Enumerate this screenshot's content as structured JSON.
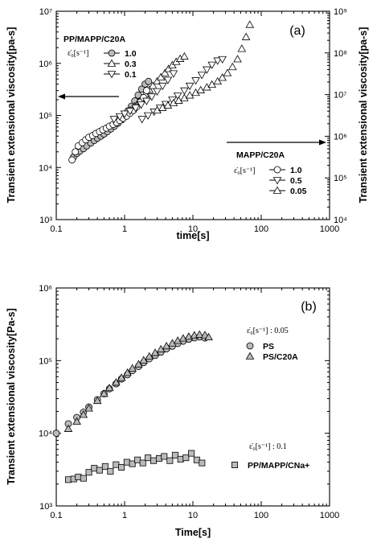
{
  "chart_data": [
    {
      "type": "scatter",
      "panel_label": "(a)",
      "xlabel": "time[s]",
      "ylabel": "Transient extensional viscosity[pa-s]",
      "x_scale": "log",
      "y_scale": "log",
      "xlim": [
        0.1,
        1000
      ],
      "ylim": [
        1000,
        10000000
      ],
      "y2lim": [
        10000,
        1000000000
      ],
      "x_ticks": [
        "0.1",
        "1",
        "10",
        "100",
        "1000"
      ],
      "y_ticks": [
        "10³",
        "10⁴",
        "10⁵",
        "10⁶",
        "10⁷"
      ],
      "y2_ticks": [
        "10⁴",
        "10⁵",
        "10⁶",
        "10⁷",
        "10⁸",
        "10⁹"
      ],
      "groups": [
        {
          "title": "PP/MAPP/C20A",
          "axis": "left",
          "arrow": "left",
          "rate_label": "ε̇₀[s⁻¹]",
          "series": [
            {
              "name": "1.0",
              "marker": "circle",
              "fill": "#bbbbbb",
              "x": [
                0.18,
                0.2,
                0.22,
                0.25,
                0.28,
                0.32,
                0.36,
                0.4,
                0.45,
                0.5,
                0.56,
                0.63,
                0.71,
                0.8,
                0.9,
                1.0,
                1.12,
                1.26,
                1.41,
                1.58,
                1.78,
                2.0,
                2.24
              ],
              "y": [
                16000,
                18500,
                20500,
                23000,
                26000,
                29500,
                33000,
                36500,
                40000,
                44000,
                49000,
                55000,
                62000,
                71000,
                83000,
                100000,
                122000,
                150000,
                190000,
                245000,
                320000,
                400000,
                450000
              ]
            },
            {
              "name": "0.3",
              "marker": "triangle-up",
              "fill": "#ffffff",
              "x": [
                0.85,
                1.0,
                1.2,
                1.4,
                1.6,
                1.8,
                2.0,
                2.3,
                2.6,
                3.0,
                3.4,
                3.9,
                4.4,
                5.0,
                5.7,
                6.5,
                7.5
              ],
              "y": [
                82000,
                100000,
                125000,
                150000,
                180000,
                215000,
                255000,
                310000,
                370000,
                450000,
                540000,
                650000,
                780000,
                920000,
                1070000,
                1220000,
                1350000
              ]
            },
            {
              "name": "0.1",
              "marker": "triangle-down",
              "fill": "#ffffff",
              "x": [
                1.8,
                2.2,
                2.7,
                3.3,
                4.0,
                5.0,
                6.0,
                7.5,
                9.0,
                11.0,
                13.5,
                16.0,
                19.0,
                23.0,
                27.0
              ],
              "y": [
                85000,
                100000,
                118000,
                140000,
                165000,
                200000,
                240000,
                300000,
                370000,
                470000,
                600000,
                760000,
                940000,
                1130000,
                1200000
              ]
            }
          ]
        },
        {
          "title": "MAPP/C20A",
          "axis": "right",
          "arrow": "right",
          "rate_label": "ε̇₀[s⁻¹]",
          "series": [
            {
              "name": "1.0",
              "marker": "circle",
              "fill": "#ffffff",
              "x": [
                0.17,
                0.19,
                0.21,
                0.24,
                0.27,
                0.3,
                0.34,
                0.38,
                0.43,
                0.48,
                0.54,
                0.6,
                0.68,
                0.76,
                0.85,
                0.95,
                1.07,
                1.2,
                1.35,
                1.5,
                1.7,
                1.9,
                2.1
              ],
              "y": [
                14000,
                20000,
                26000,
                30000,
                34000,
                38000,
                41000,
                45000,
                49000,
                53000,
                57000,
                62000,
                67000,
                73000,
                80000,
                88000,
                97000,
                110000,
                125000,
                145000,
                180000,
                220000,
                300000
              ]
            },
            {
              "name": "0.5",
              "marker": "triangle-down",
              "fill": "#ffffff",
              "x": [
                0.7,
                0.85,
                1.0,
                1.2,
                1.45,
                1.75,
                2.1,
                2.5,
                3.0,
                3.6,
                4.3,
                5.2
              ],
              "y": [
                85000,
                96000,
                108000,
                122000,
                140000,
                162000,
                190000,
                230000,
                290000,
                370000,
                480000,
                640000
              ]
            },
            {
              "name": "0.05",
              "marker": "triangle-up",
              "fill": "#ffffff",
              "x": [
                3.0,
                3.6,
                4.3,
                5.2,
                6.2,
                7.5,
                9.0,
                11.0,
                13.0,
                16.0,
                19.0,
                23.0,
                27.0,
                32.0,
                38.0,
                45.0,
                52.0,
                60.0,
                68.0
              ],
              "y": [
                125000,
                140000,
                155000,
                172000,
                192000,
                215000,
                242000,
                272000,
                305000,
                345000,
                390000,
                450000,
                530000,
                650000,
                850000,
                1200000,
                1900000,
                3200000,
                5500000
              ]
            }
          ]
        }
      ]
    },
    {
      "type": "scatter",
      "panel_label": "(b)",
      "xlabel": "Time[s]",
      "ylabel": "Transient extensional viscosity[Pa-s]",
      "x_scale": "log",
      "y_scale": "log",
      "xlim": [
        0.1,
        1000
      ],
      "ylim": [
        1000,
        1000000
      ],
      "x_ticks": [
        "0.1",
        "1",
        "10",
        "100",
        "1000"
      ],
      "y_ticks": [
        "10³",
        "10⁴",
        "10⁵",
        "10⁶"
      ],
      "groups": [
        {
          "rate_label": "ε̇₀[s⁻¹] : 0.05",
          "series": [
            {
              "name": "PS",
              "marker": "circle",
              "fill": "#bbbbbb",
              "x": [
                0.1,
                0.15,
                0.2,
                0.25,
                0.3,
                0.4,
                0.5,
                0.6,
                0.75,
                0.9,
                1.1,
                1.3,
                1.6,
                1.9,
                2.3,
                2.8,
                3.4,
                4.1,
                5.0,
                6.0,
                7.2,
                8.7,
                10.5,
                12.5,
                15.0
              ],
              "y": [
                10000,
                13500,
                16500,
                19500,
                23000,
                29000,
                35000,
                41000,
                48000,
                56000,
                64000,
                73000,
                83000,
                94000,
                106000,
                118000,
                131000,
                145000,
                158000,
                172000,
                185000,
                197000,
                206000,
                212000,
                205000
              ]
            },
            {
              "name": "PS/C20A",
              "marker": "triangle-up",
              "fill": "#bbbbbb",
              "x": [
                0.15,
                0.2,
                0.25,
                0.3,
                0.4,
                0.5,
                0.6,
                0.75,
                0.9,
                1.1,
                1.3,
                1.6,
                1.9,
                2.3,
                2.8,
                3.4,
                4.1,
                5.0,
                6.0,
                7.2,
                8.7,
                10.5,
                12.5,
                15.0,
                17.0
              ],
              "y": [
                11500,
                14500,
                18000,
                22000,
                28000,
                35000,
                42000,
                50000,
                58000,
                68000,
                78000,
                89000,
                101000,
                114000,
                128000,
                143000,
                158000,
                173000,
                188000,
                202000,
                214000,
                223000,
                228000,
                224000,
                210000
              ]
            }
          ]
        },
        {
          "rate_label": "ε̇₀[s⁻¹] : 0.1",
          "series": [
            {
              "name": "PP/MAPP/CNa+",
              "marker": "square",
              "fill": "#bbbbbb",
              "x": [
                0.15,
                0.18,
                0.21,
                0.25,
                0.3,
                0.36,
                0.43,
                0.52,
                0.62,
                0.75,
                0.9,
                1.08,
                1.3,
                1.55,
                1.85,
                2.2,
                2.65,
                3.2,
                3.8,
                4.6,
                5.5,
                6.6,
                7.9,
                9.5,
                11.4,
                13.6
              ],
              "y": [
                2300,
                2350,
                2500,
                2400,
                2900,
                3300,
                3100,
                3500,
                3000,
                3700,
                3400,
                4000,
                3800,
                4300,
                3900,
                4600,
                4200,
                4500,
                4800,
                4200,
                5000,
                4400,
                4600,
                5300,
                4300,
                3900
              ]
            }
          ]
        }
      ]
    }
  ]
}
